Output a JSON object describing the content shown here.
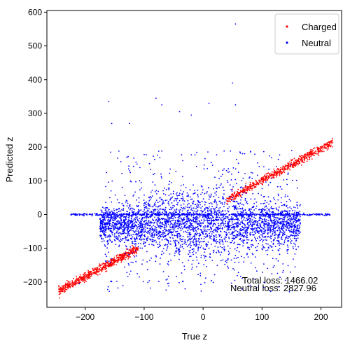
{
  "chart_data": {
    "type": "scatter",
    "title": "",
    "xlabel": "True z",
    "ylabel": "Predicted z",
    "xlim": [
      -265,
      235
    ],
    "ylim": [
      -275,
      605
    ],
    "xticks": [
      -200,
      -100,
      0,
      100,
      200
    ],
    "yticks": [
      -200,
      -100,
      0,
      100,
      200,
      300,
      400,
      500,
      600
    ],
    "grid": false,
    "legend": {
      "placement": "top-right",
      "entries": [
        "Charged",
        "Neutral"
      ]
    },
    "colors": {
      "Charged": "#ff0000",
      "Neutral": "#0000ff"
    },
    "series": [
      {
        "name": "Charged",
        "description_points": [
          {
            "x": -240,
            "y": -228
          },
          {
            "x": -220,
            "y": -205
          },
          {
            "x": -200,
            "y": -195
          },
          {
            "x": -180,
            "y": -165
          },
          {
            "x": -160,
            "y": -150
          },
          {
            "x": -150,
            "y": -140
          },
          {
            "x": 50,
            "y": 75
          },
          {
            "x": 80,
            "y": 95
          },
          {
            "x": 100,
            "y": 110
          },
          {
            "x": 120,
            "y": 135
          },
          {
            "x": 150,
            "y": 160
          },
          {
            "x": 180,
            "y": 185
          },
          {
            "x": 200,
            "y": 200
          },
          {
            "x": 215,
            "y": 215
          }
        ],
        "trend": {
          "slope": 0.95,
          "intercept": 5,
          "x_range_low": [
            -245,
            -110
          ],
          "x_range_high": [
            40,
            220
          ]
        }
      },
      {
        "name": "Neutral",
        "outliers": [
          {
            "x": 55,
            "y": 565
          },
          {
            "x": 50,
            "y": 390
          },
          {
            "x": -80,
            "y": 345
          },
          {
            "x": -160,
            "y": 335
          },
          {
            "x": -70,
            "y": 325
          },
          {
            "x": 10,
            "y": 330
          },
          {
            "x": 55,
            "y": 325
          },
          {
            "x": -40,
            "y": 305
          },
          {
            "x": -20,
            "y": 295
          },
          {
            "x": -155,
            "y": 270
          },
          {
            "x": -125,
            "y": 270
          },
          {
            "x": -210,
            "y": -205
          },
          {
            "x": -60,
            "y": -205
          },
          {
            "x": 80,
            "y": -210
          }
        ],
        "core": {
          "x_range": [
            -175,
            165
          ],
          "y_range": [
            -185,
            170
          ]
        },
        "band": {
          "y": 0,
          "x_range": [
            -225,
            215
          ]
        }
      }
    ],
    "annotations": [
      "Total loss: 1466.02",
      "Neutral loss: 2827.96"
    ]
  }
}
